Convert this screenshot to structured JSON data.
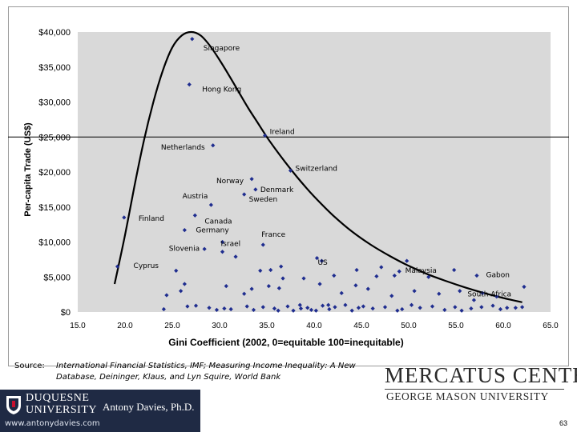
{
  "chart_data": {
    "type": "scatter",
    "xlabel": "Gini Coefficient (2002, 0=equitable 100=inequitable)",
    "ylabel": "Per-capita Trade (US$)",
    "xlim": [
      15,
      65
    ],
    "ylim": [
      0,
      40000
    ],
    "x_ticks": [
      "15.0",
      "20.0",
      "25.0",
      "30.0",
      "35.0",
      "40.0",
      "45.0",
      "50.0",
      "55.0",
      "60.0",
      "65.0"
    ],
    "y_ticks": [
      "$0",
      "$5,000",
      "$10,000",
      "$15,000",
      "$20,000",
      "$25,000",
      "$30,000",
      "$35,000",
      "$40,000"
    ],
    "reference_line_y": 25000,
    "labeled_points": [
      {
        "label": "Singapore",
        "x": 27.1,
        "y": 39000
      },
      {
        "label": "Hong Kong",
        "x": 26.8,
        "y": 32500
      },
      {
        "label": "Ireland",
        "x": 34.8,
        "y": 25200
      },
      {
        "label": "Netherlands",
        "x": 29.3,
        "y": 23800
      },
      {
        "label": "Switzerland",
        "x": 37.5,
        "y": 20200
      },
      {
        "label": "Norway",
        "x": 33.4,
        "y": 19000
      },
      {
        "label": "Denmark",
        "x": 33.8,
        "y": 17500
      },
      {
        "label": "Sweden",
        "x": 32.6,
        "y": 16800
      },
      {
        "label": "Austria",
        "x": 29.1,
        "y": 15300
      },
      {
        "label": "Finland",
        "x": 19.9,
        "y": 13500
      },
      {
        "label": "Canada",
        "x": 27.4,
        "y": 13800
      },
      {
        "label": "Germany",
        "x": 26.3,
        "y": 11700
      },
      {
        "label": "Israel",
        "x": 30.3,
        "y": 10000
      },
      {
        "label": "France",
        "x": 34.6,
        "y": 9600
      },
      {
        "label": "Slovenia",
        "x": 28.4,
        "y": 9000
      },
      {
        "label": "Malaysia",
        "x": 49.8,
        "y": 7300
      },
      {
        "label": "Cyprus",
        "x": 19.2,
        "y": 6500
      },
      {
        "label": "US",
        "x": 40.8,
        "y": 7300
      },
      {
        "label": "Gabon",
        "x": 62.2,
        "y": 3600
      },
      {
        "label": "South Africa",
        "x": 57.8,
        "y": 2700
      }
    ],
    "unlabeled_points": [
      [
        40.3,
        7700
      ],
      [
        47.1,
        6400
      ],
      [
        48.5,
        5200
      ],
      [
        44.5,
        6000
      ],
      [
        36.5,
        6500
      ],
      [
        35.4,
        6000
      ],
      [
        34.3,
        5900
      ],
      [
        31.7,
        7900
      ],
      [
        30.3,
        8600
      ],
      [
        35.2,
        3700
      ],
      [
        36.7,
        4800
      ],
      [
        40.6,
        4000
      ],
      [
        42.1,
        5200
      ],
      [
        46.6,
        5100
      ],
      [
        49.0,
        5800
      ],
      [
        52.1,
        5000
      ],
      [
        54.8,
        6000
      ],
      [
        57.2,
        5200
      ],
      [
        38.9,
        4800
      ],
      [
        25.4,
        5900
      ],
      [
        26.3,
        4000
      ],
      [
        33.4,
        3300
      ],
      [
        36.3,
        3400
      ],
      [
        45.7,
        3300
      ],
      [
        50.6,
        3000
      ],
      [
        55.4,
        3000
      ],
      [
        59.3,
        2200
      ],
      [
        30.7,
        3700
      ],
      [
        44.4,
        3800
      ],
      [
        24.4,
        2400
      ],
      [
        25.9,
        3000
      ],
      [
        32.6,
        2600
      ],
      [
        42.9,
        2700
      ],
      [
        48.2,
        2300
      ],
      [
        53.2,
        2600
      ],
      [
        56.9,
        1700
      ],
      [
        58.9,
        900
      ],
      [
        62.0,
        700
      ],
      [
        61.3,
        600
      ],
      [
        24.1,
        400
      ],
      [
        26.6,
        800
      ],
      [
        27.5,
        900
      ],
      [
        28.9,
        600
      ],
      [
        30.5,
        500
      ],
      [
        31.2,
        400
      ],
      [
        32.9,
        800
      ],
      [
        34.6,
        700
      ],
      [
        35.8,
        500
      ],
      [
        37.2,
        800
      ],
      [
        38.6,
        500
      ],
      [
        39.3,
        600
      ],
      [
        40.2,
        200
      ],
      [
        40.9,
        900
      ],
      [
        41.6,
        400
      ],
      [
        42.2,
        700
      ],
      [
        43.3,
        1000
      ],
      [
        44.7,
        600
      ],
      [
        45.2,
        800
      ],
      [
        46.2,
        500
      ],
      [
        47.5,
        700
      ],
      [
        49.3,
        400
      ],
      [
        50.3,
        1000
      ],
      [
        51.2,
        600
      ],
      [
        52.5,
        800
      ],
      [
        53.8,
        300
      ],
      [
        54.9,
        700
      ],
      [
        56.6,
        500
      ],
      [
        57.7,
        700
      ],
      [
        59.7,
        400
      ],
      [
        60.4,
        600
      ],
      [
        36.2,
        200
      ],
      [
        38.5,
        1000
      ],
      [
        39.7,
        300
      ],
      [
        48.8,
        200
      ],
      [
        55.6,
        200
      ],
      [
        33.6,
        300
      ],
      [
        41.5,
        1000
      ],
      [
        44.0,
        200
      ],
      [
        29.7,
        300
      ],
      [
        37.8,
        200
      ]
    ],
    "trend_curve_x": [
      18.9,
      20,
      21,
      22,
      23,
      24,
      25,
      26,
      27,
      28,
      29,
      30,
      31,
      32,
      33,
      34,
      35,
      36,
      37,
      38,
      39,
      40,
      42,
      44,
      46,
      48,
      50,
      52,
      54,
      56,
      58,
      60,
      62
    ],
    "trend_curve_y": [
      4000,
      11000,
      18000,
      24500,
      30000,
      34500,
      37800,
      39500,
      40000,
      39500,
      38000,
      36000,
      33800,
      31500,
      29200,
      27100,
      25000,
      23100,
      21300,
      19600,
      18000,
      16500,
      13800,
      11500,
      9600,
      8000,
      6600,
      5400,
      4400,
      3500,
      2700,
      2000,
      1400
    ]
  },
  "source": {
    "label": "Source:",
    "text": "International Financial Statistics, IMF; Measuring Income Inequality: A New Database, Deininger, Klaus, and Lyn Squire, World Bank"
  },
  "logo": {
    "mercatus_title": "MERCATUS CENTER",
    "mercatus_subtitle": "GEORGE MASON UNIVERSITY"
  },
  "footer": {
    "university_line1": "DUQUESNE",
    "university_line2": "UNIVERSITY",
    "author": "Antony Davies, Ph.D.",
    "website": "www.antonydavies.com",
    "page_number": "63"
  },
  "colors": {
    "plot_bg": "#d9d9d9",
    "point": "#1f2d8f",
    "curve": "#000000",
    "footer_bg": "#1f2a44"
  }
}
